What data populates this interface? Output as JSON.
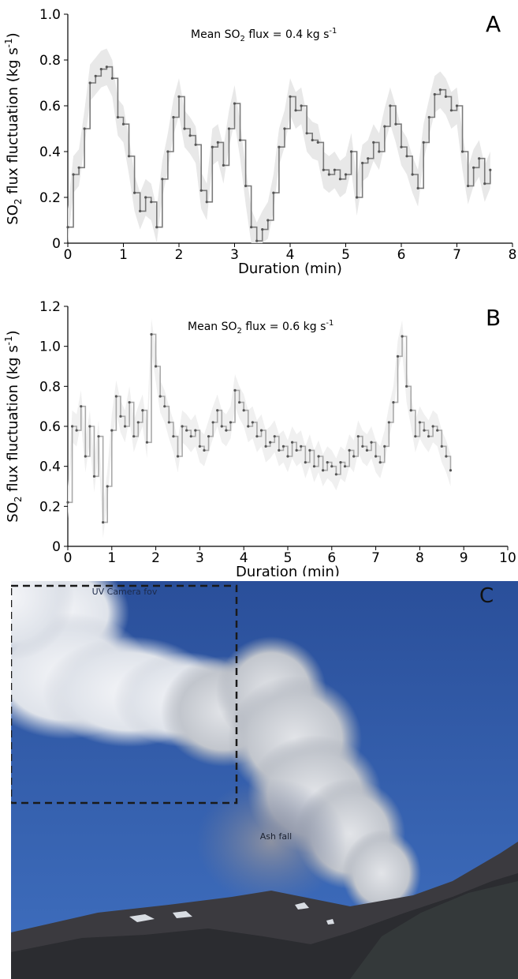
{
  "chart_data": [
    {
      "panel": "A",
      "type": "line",
      "ylabel": "SO2 flux fluctuation (kg s-1)",
      "ylabel_parts": {
        "main": "SO",
        "sub": "2",
        "rest": " flux fluctuation (kg s",
        "sup": "-1",
        "end": ")"
      },
      "xlabel": "Duration (min)",
      "annotation": {
        "pre": "Mean SO",
        "sub": "2",
        "mid": " flux = 0.4 kg s",
        "sup": "-1"
      },
      "xlim": [
        0,
        8
      ],
      "ylim": [
        0,
        1.0
      ],
      "xticks": [
        "0",
        "1",
        "2",
        "3",
        "4",
        "5",
        "6",
        "7",
        "8"
      ],
      "yticks": [
        "0",
        "0.2",
        "0.4",
        "0.6",
        "0.8",
        "1.0"
      ],
      "line_color": "#7a7a7a",
      "band_color": "#e6e6e6",
      "series": [
        {
          "x": [
            0,
            0.1,
            0.2,
            0.3,
            0.4,
            0.5,
            0.6,
            0.7,
            0.8,
            0.9,
            1.0,
            1.1,
            1.2,
            1.3,
            1.4,
            1.5,
            1.6,
            1.7,
            1.8,
            1.9,
            2.0,
            2.1,
            2.2,
            2.3,
            2.4,
            2.5,
            2.6,
            2.7,
            2.8,
            2.9,
            3.0,
            3.1,
            3.2,
            3.3,
            3.4,
            3.5,
            3.6,
            3.7,
            3.8,
            3.9,
            4.0,
            4.1,
            4.2,
            4.3,
            4.4,
            4.5,
            4.6,
            4.7,
            4.8,
            4.9,
            5.0,
            5.1,
            5.2,
            5.3,
            5.4,
            5.5,
            5.6,
            5.7,
            5.8,
            5.9,
            6.0,
            6.1,
            6.2,
            6.3,
            6.4,
            6.5,
            6.6,
            6.7,
            6.8,
            6.9,
            7.0,
            7.1,
            7.2,
            7.3,
            7.4,
            7.5,
            7.6
          ],
          "y": [
            0.07,
            0.3,
            0.33,
            0.5,
            0.7,
            0.73,
            0.76,
            0.77,
            0.72,
            0.55,
            0.52,
            0.38,
            0.22,
            0.14,
            0.2,
            0.18,
            0.07,
            0.28,
            0.4,
            0.55,
            0.64,
            0.5,
            0.47,
            0.43,
            0.23,
            0.18,
            0.42,
            0.44,
            0.34,
            0.5,
            0.61,
            0.45,
            0.25,
            0.07,
            0.01,
            0.06,
            0.1,
            0.22,
            0.42,
            0.5,
            0.64,
            0.58,
            0.6,
            0.48,
            0.45,
            0.44,
            0.32,
            0.3,
            0.32,
            0.28,
            0.3,
            0.4,
            0.2,
            0.35,
            0.37,
            0.44,
            0.4,
            0.51,
            0.6,
            0.52,
            0.42,
            0.38,
            0.3,
            0.24,
            0.44,
            0.55,
            0.65,
            0.67,
            0.64,
            0.58,
            0.6,
            0.4,
            0.25,
            0.33,
            0.37,
            0.26,
            0.32
          ]
        }
      ]
    },
    {
      "panel": "B",
      "type": "line",
      "ylabel": "SO2 flux fluctuation (kg s-1)",
      "ylabel_parts": {
        "main": "SO",
        "sub": "2",
        "rest": " flux fluctuation (kg s",
        "sup": "-1",
        "end": ")"
      },
      "xlabel": "Duration (min)",
      "annotation": {
        "pre": "Mean SO",
        "sub": "2",
        "mid": " flux = 0.6 kg s",
        "sup": "-1"
      },
      "xlim": [
        0,
        10
      ],
      "ylim": [
        0,
        1.2
      ],
      "xticks": [
        "0",
        "1",
        "2",
        "3",
        "4",
        "5",
        "6",
        "7",
        "8",
        "9",
        "10"
      ],
      "yticks": [
        "0",
        "0.2",
        "0.4",
        "0.6",
        "0.8",
        "1.0",
        "1.2"
      ],
      "line_color": "#a9a9a9",
      "band_color": "#eeeeee",
      "series": [
        {
          "x": [
            0,
            0.1,
            0.2,
            0.3,
            0.4,
            0.5,
            0.6,
            0.7,
            0.8,
            0.9,
            1.0,
            1.1,
            1.2,
            1.3,
            1.4,
            1.5,
            1.6,
            1.7,
            1.8,
            1.9,
            2.0,
            2.1,
            2.2,
            2.3,
            2.4,
            2.5,
            2.6,
            2.7,
            2.8,
            2.9,
            3.0,
            3.1,
            3.2,
            3.3,
            3.4,
            3.5,
            3.6,
            3.7,
            3.8,
            3.9,
            4.0,
            4.1,
            4.2,
            4.3,
            4.4,
            4.5,
            4.6,
            4.7,
            4.8,
            4.9,
            5.0,
            5.1,
            5.2,
            5.3,
            5.4,
            5.5,
            5.6,
            5.7,
            5.8,
            5.9,
            6.0,
            6.1,
            6.2,
            6.3,
            6.4,
            6.5,
            6.6,
            6.7,
            6.8,
            6.9,
            7.0,
            7.1,
            7.2,
            7.3,
            7.4,
            7.5,
            7.6,
            7.7,
            7.8,
            7.9,
            8.0,
            8.1,
            8.2,
            8.3,
            8.4,
            8.5,
            8.6,
            8.7
          ],
          "y": [
            0.22,
            0.6,
            0.58,
            0.7,
            0.45,
            0.6,
            0.35,
            0.55,
            0.12,
            0.3,
            0.58,
            0.75,
            0.65,
            0.6,
            0.72,
            0.55,
            0.62,
            0.68,
            0.52,
            1.06,
            0.9,
            0.75,
            0.7,
            0.62,
            0.55,
            0.45,
            0.6,
            0.58,
            0.55,
            0.58,
            0.5,
            0.48,
            0.55,
            0.62,
            0.68,
            0.6,
            0.58,
            0.62,
            0.78,
            0.72,
            0.68,
            0.6,
            0.62,
            0.55,
            0.58,
            0.5,
            0.52,
            0.55,
            0.48,
            0.5,
            0.45,
            0.52,
            0.48,
            0.5,
            0.42,
            0.48,
            0.4,
            0.45,
            0.38,
            0.42,
            0.4,
            0.36,
            0.42,
            0.4,
            0.48,
            0.45,
            0.55,
            0.5,
            0.48,
            0.52,
            0.45,
            0.42,
            0.5,
            0.62,
            0.72,
            0.95,
            1.05,
            0.8,
            0.68,
            0.55,
            0.62,
            0.58,
            0.55,
            0.6,
            0.58,
            0.5,
            0.45,
            0.38
          ]
        }
      ]
    }
  ],
  "panel_labels": {
    "a": "A",
    "b": "B",
    "c": "C"
  },
  "photo": {
    "fov_label": "UV Camera fov",
    "ash_label": "Ash fall",
    "sky_color": "#2d5aa8",
    "fov_box_color": "#1a1a1a"
  }
}
